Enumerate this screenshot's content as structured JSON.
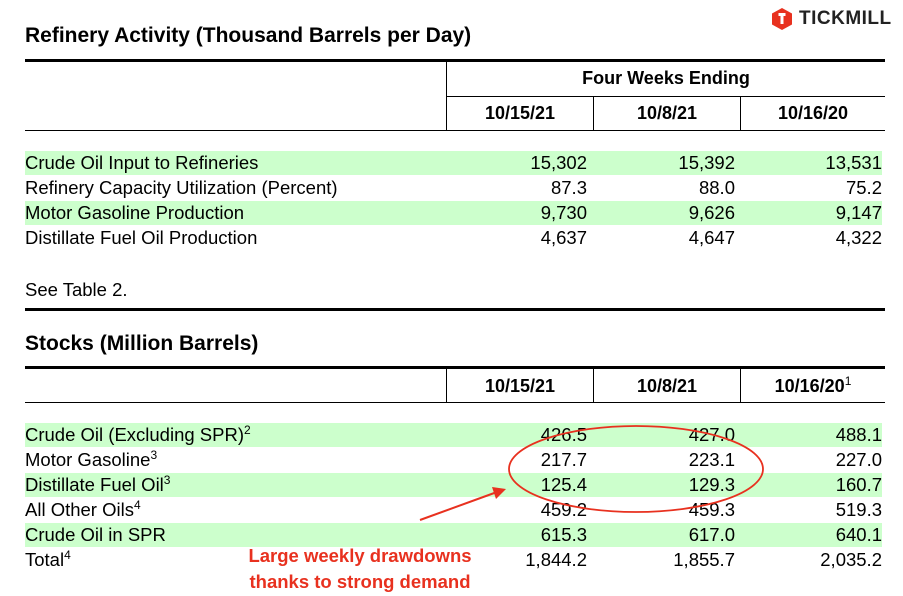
{
  "brand": {
    "name": "TICKMILL",
    "accent": "#e8311f"
  },
  "refinery": {
    "title": "Refinery Activity (Thousand Barrels per Day)",
    "group_header": "Four Weeks Ending",
    "columns": [
      "10/15/21",
      "10/8/21",
      "10/16/20"
    ],
    "rows": [
      {
        "label": "Crude Oil Input to Refineries",
        "sup": "",
        "values": [
          "15,302",
          "15,392",
          "13,531"
        ]
      },
      {
        "label": "Refinery Capacity Utilization (Percent)",
        "sup": "",
        "values": [
          "87.3",
          "88.0",
          "75.2"
        ]
      },
      {
        "label": "Motor Gasoline Production",
        "sup": "",
        "values": [
          "9,730",
          "9,626",
          "9,147"
        ]
      },
      {
        "label": "Distillate Fuel Oil Production",
        "sup": "",
        "values": [
          "4,637",
          "4,647",
          "4,322"
        ]
      }
    ],
    "note": "See Table 2."
  },
  "stocks": {
    "title": "Stocks (Million Barrels)",
    "columns": [
      {
        "text": "10/15/21",
        "sup": ""
      },
      {
        "text": "10/8/21",
        "sup": ""
      },
      {
        "text": "10/16/20",
        "sup": "1"
      }
    ],
    "rows": [
      {
        "label": "Crude Oil (Excluding SPR)",
        "sup": "2",
        "values": [
          "426.5",
          "427.0",
          "488.1"
        ]
      },
      {
        "label": "Motor Gasoline",
        "sup": "3",
        "values": [
          "217.7",
          "223.1",
          "227.0"
        ]
      },
      {
        "label": "Distillate Fuel Oil",
        "sup": "3",
        "values": [
          "125.4",
          "129.3",
          "160.7"
        ]
      },
      {
        "label": "All Other Oils",
        "sup": "4",
        "values": [
          "459.2",
          "459.3",
          "519.3"
        ]
      },
      {
        "label": "Crude Oil in SPR",
        "sup": "",
        "values": [
          "615.3",
          "617.0",
          "640.1"
        ]
      },
      {
        "label": "Total",
        "sup": "4",
        "values": [
          "1,844.2",
          "1,855.7",
          "2,035.2"
        ]
      }
    ]
  },
  "annotation": {
    "line1": "Large weekly drawdowns",
    "line2": "thanks to strong demand",
    "color": "#e8311f"
  },
  "colors": {
    "row_highlight": "#ccffcc"
  }
}
